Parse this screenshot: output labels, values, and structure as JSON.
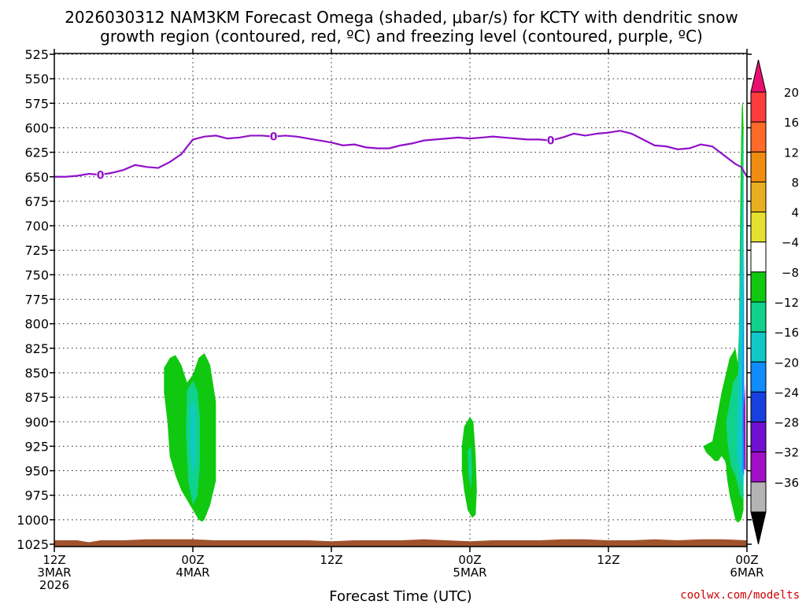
{
  "chart_data": {
    "type": "contour",
    "title_line1": "2026030312 NAM3KM Forecast Omega (shaded, μbar/s) for KCTY with dendritic snow",
    "title_line2": "growth region (contoured, red, ºC) and freezing level (contoured, purple, ºC)",
    "xlabel": "Forecast Time (UTC)",
    "credit": "coolwx.com/modelts",
    "x_range_hours": [
      0,
      60
    ],
    "x_ticks": [
      {
        "hour": 0,
        "lines": [
          "12Z",
          "3MAR",
          "2026"
        ]
      },
      {
        "hour": 12,
        "lines": [
          "00Z",
          "4MAR"
        ]
      },
      {
        "hour": 24,
        "lines": [
          "12Z"
        ]
      },
      {
        "hour": 36,
        "lines": [
          "00Z",
          "5MAR"
        ]
      },
      {
        "hour": 48,
        "lines": [
          "12Z"
        ]
      },
      {
        "hour": 60,
        "lines": [
          "00Z",
          "6MAR"
        ]
      }
    ],
    "y_range_hpa": [
      525,
      1030
    ],
    "y_ticks": [
      525,
      550,
      575,
      600,
      625,
      650,
      675,
      700,
      725,
      750,
      775,
      800,
      825,
      850,
      875,
      900,
      925,
      950,
      975,
      1000,
      1025
    ],
    "grid": true,
    "colorbar": {
      "labels": [
        "20",
        "16",
        "12",
        "8",
        "4",
        "−4",
        "−8",
        "−12",
        "−16",
        "−20",
        "−24",
        "−28",
        "−32",
        "−36"
      ],
      "colors": [
        "#e8106e",
        "#ff3c3c",
        "#ff6a28",
        "#f08c10",
        "#e8b020",
        "#e8e030",
        "#ffffff",
        "#10c810",
        "#10d28c",
        "#10c8c8",
        "#108cff",
        "#1840e0",
        "#7010d0",
        "#a010c8",
        "#b4b4b4",
        "#000000"
      ]
    },
    "freezing_level": {
      "label": "0",
      "color": "#9010c8",
      "hours": [
        0,
        1,
        2,
        3,
        4,
        5,
        6,
        7,
        8,
        9,
        10,
        11,
        12,
        13,
        14,
        15,
        16,
        17,
        18,
        19,
        20,
        21,
        22,
        23,
        24,
        25,
        26,
        27,
        28,
        29,
        30,
        31,
        32,
        33,
        34,
        35,
        36,
        37,
        38,
        39,
        40,
        41,
        42,
        43,
        44,
        45,
        46,
        47,
        48,
        49,
        50,
        51,
        52,
        53,
        54,
        55,
        56,
        57,
        58,
        59,
        59.5,
        60
      ],
      "pressure_hpa": [
        650,
        650,
        649,
        647,
        648,
        646,
        643,
        638,
        640,
        641,
        635,
        627,
        612,
        609,
        608,
        611,
        610,
        608,
        608,
        609,
        608,
        609,
        611,
        613,
        615,
        618,
        617,
        620,
        621,
        621,
        618,
        616,
        613,
        612,
        611,
        610,
        611,
        610,
        609,
        610,
        611,
        612,
        612,
        613,
        610,
        606,
        608,
        606,
        605,
        603,
        606,
        612,
        618,
        619,
        622,
        621,
        617,
        619,
        628,
        637,
        640,
        650
      ]
    },
    "omega_regions": [
      {
        "name": "omega 4MAR 00Z",
        "hours": [
          9.5,
          10,
          10.5,
          11,
          11.5,
          12,
          12.5,
          13,
          13.5,
          14,
          14,
          13.5,
          13,
          12.8,
          12.5,
          12,
          11.5,
          11,
          10.5,
          10,
          9.8,
          9.5
        ],
        "pressure_hpa": [
          845,
          835,
          832,
          842,
          860,
          852,
          835,
          830,
          842,
          880,
          960,
          985,
          1000,
          1002,
          1000,
          990,
          980,
          970,
          955,
          935,
          900,
          870
        ],
        "fill": "#10c810"
      },
      {
        "name": "omega 4MAR 00Z core",
        "hours": [
          11.5,
          12,
          12.4,
          12.6,
          12.6,
          12.4,
          12,
          11.6,
          11.4
        ],
        "pressure_hpa": [
          868,
          858,
          868,
          895,
          945,
          975,
          985,
          960,
          910
        ],
        "fill": "#10d28c"
      },
      {
        "name": "omega 4MAR 00Z inner",
        "hours": [
          11.8,
          12,
          12.2,
          12.2,
          12,
          11.8
        ],
        "pressure_hpa": [
          885,
          878,
          890,
          940,
          955,
          930
        ],
        "fill": "#10c8c8"
      },
      {
        "name": "omega 5MAR 00Z",
        "hours": [
          35.5,
          36,
          36.3,
          36.5,
          36.6,
          36.5,
          36.2,
          35.8,
          35.5,
          35.3,
          35.3
        ],
        "pressure_hpa": [
          905,
          895,
          900,
          935,
          970,
          995,
          998,
          990,
          970,
          950,
          925
        ],
        "fill": "#10c810"
      },
      {
        "name": "omega 5MAR 00Z core",
        "hours": [
          35.8,
          36.1,
          36.2,
          36.1,
          35.9
        ],
        "pressure_hpa": [
          930,
          925,
          950,
          968,
          955
        ],
        "fill": "#10d28c"
      },
      {
        "name": "omega 6MAR 00Z",
        "hours": [
          56.2,
          57,
          57.8,
          58.5,
          59,
          59.2,
          59.3,
          59.35,
          59.4,
          59.45,
          59.5,
          59.55,
          59.6,
          59.65,
          59.7,
          59.7,
          59.6,
          59.5,
          59.2,
          59,
          58.8,
          58.5,
          58.3,
          58.2,
          58.2,
          58.1,
          57.8,
          57.5,
          57.2,
          56.8,
          56.5,
          56.2
        ],
        "pressure_hpa": [
          925,
          920,
          870,
          835,
          825,
          840,
          810,
          760,
          700,
          650,
          610,
          580,
          575,
          575,
          600,
          990,
          995,
          1000,
          1003,
          1000,
          990,
          975,
          960,
          950,
          945,
          940,
          935,
          940,
          940,
          935,
          932,
          925
        ],
        "fill": "#10c810"
      },
      {
        "name": "omega 6MAR 00Z core",
        "hours": [
          58.2,
          58.8,
          59.3,
          59.5,
          59.6,
          59.7,
          59.7,
          59.4,
          59.0,
          58.6,
          58.3
        ],
        "pressure_hpa": [
          900,
          860,
          850,
          700,
          620,
          600,
          980,
          975,
          955,
          945,
          920
        ],
        "fill": "#10d28c"
      },
      {
        "name": "omega 6MAR 00Z teal",
        "hours": [
          59.2,
          59.5,
          59.7,
          59.7,
          59.4,
          59.1
        ],
        "pressure_hpa": [
          880,
          700,
          650,
          965,
          960,
          930
        ],
        "fill": "#10c8c8"
      },
      {
        "name": "omega 6MAR 00Z blue",
        "hours": [
          59.6,
          59.75,
          59.75,
          59.6
        ],
        "pressure_hpa": [
          860,
          720,
          955,
          950
        ],
        "fill": "#108cff"
      },
      {
        "name": "omega 6MAR 00Z purple",
        "hours": [
          59.7,
          59.85,
          59.9,
          59.75
        ],
        "pressure_hpa": [
          890,
          860,
          950,
          948
        ],
        "fill": "#a010c8"
      }
    ],
    "terrain": {
      "color": "#a0522d",
      "hours": [
        0,
        2,
        3,
        4,
        6,
        8,
        10,
        12,
        14,
        16,
        18,
        20,
        22,
        24,
        26,
        28,
        30,
        32,
        34,
        36,
        38,
        40,
        42,
        44,
        46,
        48,
        50,
        52,
        54,
        56,
        58,
        60
      ],
      "surface_pressure_hpa": [
        1021,
        1021,
        1023,
        1021,
        1021,
        1020,
        1020,
        1020,
        1021,
        1021,
        1021,
        1021,
        1021,
        1022,
        1021,
        1021,
        1021,
        1020,
        1021,
        1022,
        1021,
        1021,
        1021,
        1020,
        1020,
        1021,
        1021,
        1020,
        1021,
        1020,
        1020,
        1021
      ]
    }
  }
}
